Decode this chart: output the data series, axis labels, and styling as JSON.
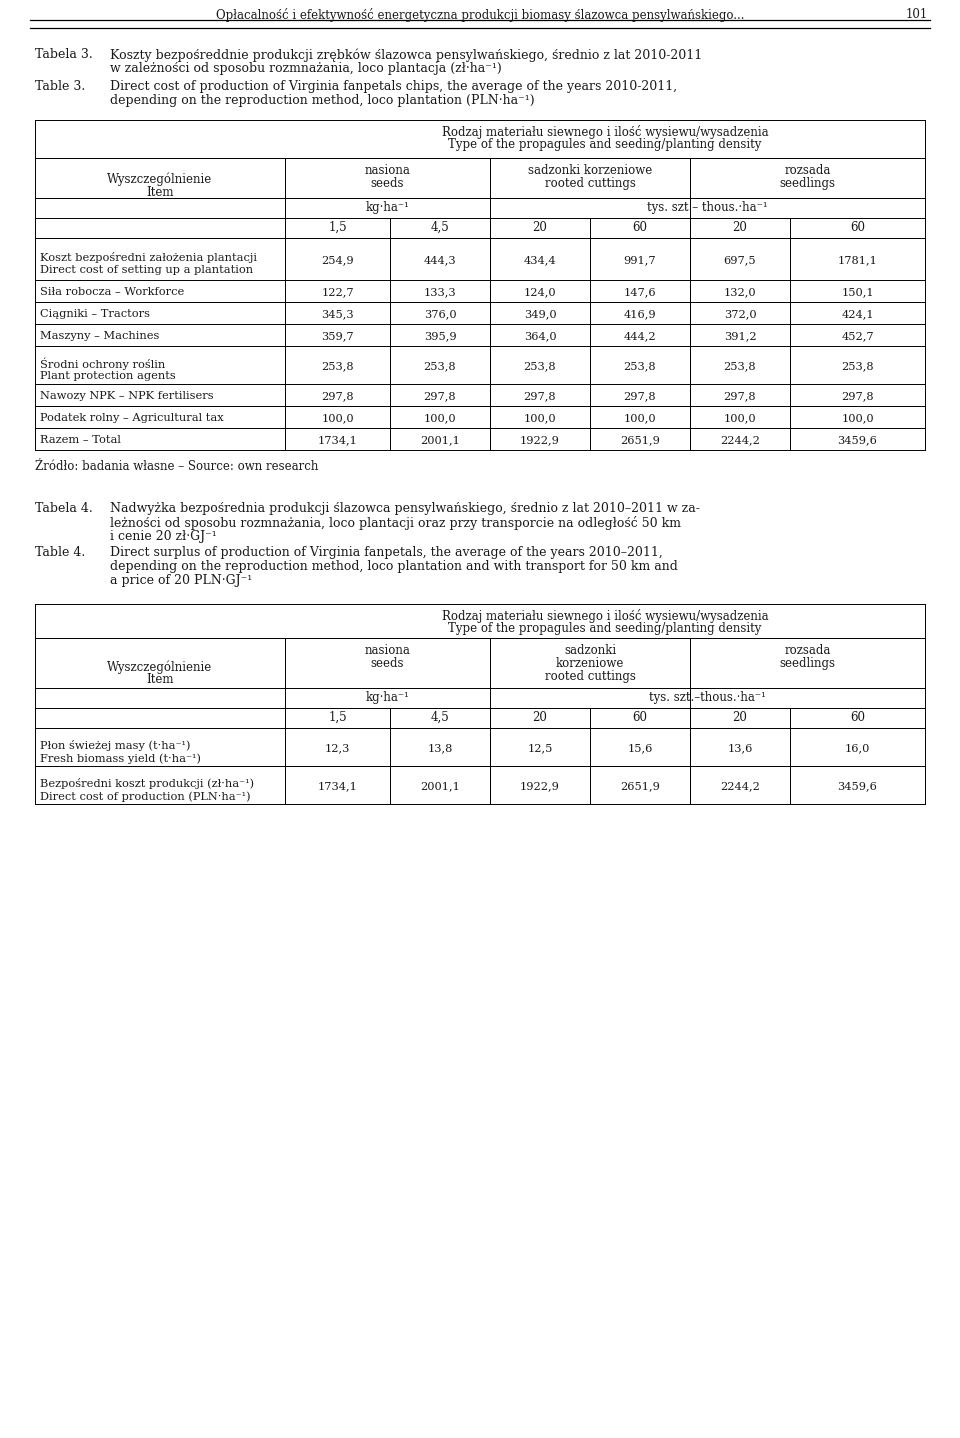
{
  "header_title": "Opłacalność i efektywność energetyczna produkcji biomasy ślazowca pensylwańskiego...",
  "page_number": "101",
  "tabela3_label": "Tabela 3.",
  "tabela3_line1": "Koszty bezpośreddnie produkcji zrębków ślazowca pensylwańskiego, średnio z lat 2010-2011",
  "tabela3_line2": "w zależności od sposobu rozmnażania, loco plantacja (zł·ha⁻¹)",
  "table3_label": "Table 3.",
  "table3_line1": "Direct cost of production of Virginia fanpetals chips, the average of the years 2010-2011,",
  "table3_line2": "depending on the reproduction method, loco plantation (PLN·ha⁻¹)",
  "col_header1_pl": "Rodzaj materiału siewnego i ilość wysiewu/wysadzenia",
  "col_header1_en": "Type of the propagules and seeding/planting density",
  "units_col1": "kg·ha⁻¹",
  "units_col2": "tys. szt – thous.·ha⁻¹",
  "density_row": [
    "1,5",
    "4,5",
    "20",
    "60",
    "20",
    "60"
  ],
  "rows": [
    {
      "label": "Koszt bezpośredni założenia plantacji\nDirect cost of setting up a plantation",
      "values": [
        "254,9",
        "444,3",
        "434,4",
        "991,7",
        "697,5",
        "1781,1"
      ],
      "two_line": true
    },
    {
      "label": "Siła robocza – Workforce",
      "values": [
        "122,7",
        "133,3",
        "124,0",
        "147,6",
        "132,0",
        "150,1"
      ],
      "two_line": false
    },
    {
      "label": "Ciągniki – Tractors",
      "values": [
        "345,3",
        "376,0",
        "349,0",
        "416,9",
        "372,0",
        "424,1"
      ],
      "two_line": false
    },
    {
      "label": "Maszyny – Machines",
      "values": [
        "359,7",
        "395,9",
        "364,0",
        "444,2",
        "391,2",
        "452,7"
      ],
      "two_line": false
    },
    {
      "label": "Środni ochrony roślin\nPlant protection agents",
      "values": [
        "253,8",
        "253,8",
        "253,8",
        "253,8",
        "253,8",
        "253,8"
      ],
      "two_line": true
    },
    {
      "label": "Nawozy NPK – NPK fertilisers",
      "values": [
        "297,8",
        "297,8",
        "297,8",
        "297,8",
        "297,8",
        "297,8"
      ],
      "two_line": false
    },
    {
      "label": "Podatek rolny – Agricultural tax",
      "values": [
        "100,0",
        "100,0",
        "100,0",
        "100,0",
        "100,0",
        "100,0"
      ],
      "two_line": false
    },
    {
      "label": "Razem – Total",
      "values": [
        "1734,1",
        "2001,1",
        "1922,9",
        "2651,9",
        "2244,2",
        "3459,6"
      ],
      "two_line": false
    }
  ],
  "source_text": "Źródło: badania własne – Source: own research",
  "tabela4_label": "Tabela 4.",
  "tabela4_line1": "Nadwyżka bezpośrednia produkcji ślazowca pensylwańskiego, średnio z lat 2010–2011 w za-",
  "tabela4_line2": "leżności od sposobu rozmnażania, loco plantacji oraz przy transporcie na odległość 50 km",
  "tabela4_line3": "i cenie 20 zł·GJ⁻¹",
  "table4_label": "Table 4.",
  "table4_line1": "Direct surplus of production of Virginia fanpetals, the average of the years 2010–2011,",
  "table4_line2": "depending on the reproduction method, loco plantation and with transport for 50 km and",
  "table4_line3": "a price of 20 PLN·GJ⁻¹",
  "t4_col_header1_pl": "Rodzaj materiału siewnego i ilość wysiewu/wysadzenia",
  "t4_col_header1_en": "Type of the propagules and seeding/planting density",
  "t4_units_col1": "kg·ha⁻¹",
  "t4_units_col2": "tys. szt.–thous.·ha⁻¹",
  "t4_density_row": [
    "1,5",
    "4,5",
    "20",
    "60",
    "20",
    "60"
  ],
  "t4_rows": [
    {
      "label": "Płon świeżej masy (t·ha⁻¹)\nFresh biomass yield (t·ha⁻¹)",
      "values": [
        "12,3",
        "13,8",
        "12,5",
        "15,6",
        "13,6",
        "16,0"
      ],
      "two_line": true
    },
    {
      "label": "Bezpośredni koszt produkcji (zł·ha⁻¹)\nDirect cost of production (PLN·ha⁻¹)",
      "values": [
        "1734,1",
        "2001,1",
        "1922,9",
        "2651,9",
        "2244,2",
        "3459,6"
      ],
      "two_line": true
    }
  ],
  "bg_color": "#ffffff"
}
